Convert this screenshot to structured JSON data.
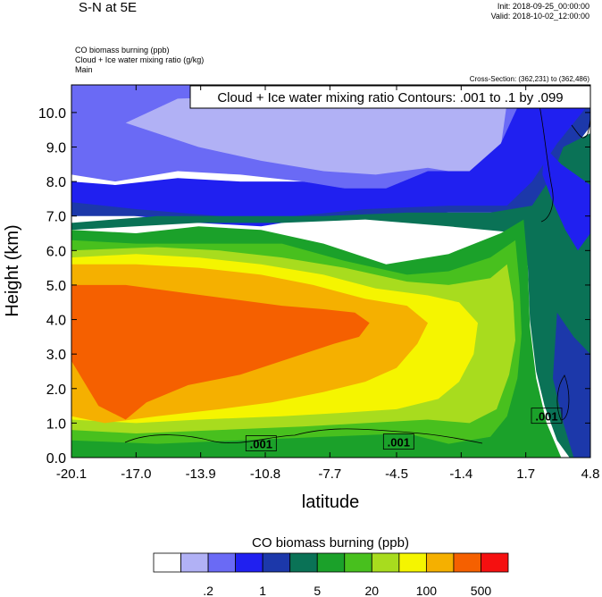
{
  "header": {
    "title": "S-N at 5E",
    "init": "Init: 2018-09-25_00:00:00",
    "valid": "Valid: 2018-10-02_12:00:00",
    "field1": "CO biomass burning   (ppb)",
    "field2": "Cloud + Ice water mixing ratio   (g/kg)",
    "field3": "Main",
    "cross_section": "Cross-Section: (362,231) to (362,486)"
  },
  "chart_data": {
    "type": "heatmap",
    "title": "S-N at 5E",
    "xlabel": "latitude",
    "ylabel": "Height (km)",
    "xlim": [
      -20.1,
      4.8
    ],
    "ylim": [
      0.0,
      10.8
    ],
    "x_ticks": [
      -20.1,
      -17.0,
      -13.9,
      -10.8,
      -7.7,
      -4.5,
      -1.4,
      1.7,
      4.8
    ],
    "x_tick_labels": [
      "-20.1",
      "-17.0",
      "-13.9",
      "-10.8",
      "-7.7",
      "-4.5",
      "-1.4",
      "1.7",
      "4.8"
    ],
    "y_ticks": [
      0.0,
      1.0,
      2.0,
      3.0,
      4.0,
      5.0,
      6.0,
      7.0,
      8.0,
      9.0,
      10.0
    ],
    "y_tick_labels": [
      "0.0",
      "1.0",
      "2.0",
      "3.0",
      "4.0",
      "5.0",
      "6.0",
      "7.0",
      "8.0",
      "9.0",
      "10.0"
    ],
    "contour_title": "Cloud + Ice water mixing ratio Contours: .001 to .1 by .099",
    "contour_labels": [
      {
        "text": ".001",
        "lat": -11.0,
        "z": 0.4
      },
      {
        "text": ".001",
        "lat": -4.4,
        "z": 0.45
      },
      {
        "text": ".001",
        "lat": 2.7,
        "z": 1.2
      }
    ],
    "colorbar": {
      "title": "CO biomass burning  (ppb)",
      "colors": [
        "#ffffff",
        "#b1b1f5",
        "#6a6af5",
        "#2020f0",
        "#1c38aa",
        "#0a7256",
        "#1ba12a",
        "#48c01e",
        "#a8dc1e",
        "#f5f500",
        "#f5b000",
        "#f56000",
        "#f51010"
      ],
      "tick_labels": [
        ".2",
        "1",
        "5",
        "20",
        "100",
        "500"
      ]
    },
    "regions": [
      {
        "level": 2,
        "lat_z": [
          [
            -20.1,
            9.2
          ],
          [
            -17.5,
            9.6
          ],
          [
            -14,
            10.3
          ],
          [
            -10,
            10.2
          ],
          [
            -7,
            10.0
          ],
          [
            -4,
            9.7
          ],
          [
            -1,
            10.0
          ],
          [
            0.5,
            10.5
          ],
          [
            0.5,
            10.8
          ],
          [
            -20.1,
            10.8
          ]
        ]
      },
      {
        "level": 2,
        "lat_z": [
          [
            -20.1,
            8.2
          ],
          [
            -18,
            8.0
          ],
          [
            -15,
            8.3
          ],
          [
            -12,
            8.2
          ],
          [
            -9,
            8.0
          ],
          [
            -6.5,
            7.7
          ],
          [
            -4,
            7.6
          ],
          [
            -2,
            7.9
          ],
          [
            0,
            8.4
          ],
          [
            1.5,
            9.0
          ],
          [
            2.5,
            10.0
          ],
          [
            4.8,
            10.8
          ],
          [
            4.8,
            10.8
          ],
          [
            -20.1,
            10.8
          ]
        ]
      },
      {
        "level": 1,
        "lat_z": [
          [
            -17.5,
            9.7
          ],
          [
            -14,
            9.0
          ],
          [
            -11,
            8.6
          ],
          [
            -8,
            8.3
          ],
          [
            -5.5,
            8.2
          ],
          [
            -3,
            8.4
          ],
          [
            -1,
            8.2
          ],
          [
            0.5,
            9.0
          ],
          [
            0.8,
            10.3
          ],
          [
            -3,
            10.5
          ],
          [
            -10,
            10.5
          ],
          [
            -15,
            10.4
          ]
        ]
      },
      {
        "level": 3,
        "lat_z": [
          [
            -20.1,
            7.2
          ],
          [
            -17,
            7.0
          ],
          [
            -14,
            6.8
          ],
          [
            -11,
            6.7
          ],
          [
            -8,
            7.0
          ],
          [
            -5,
            7.1
          ],
          [
            -2,
            7.2
          ],
          [
            0.8,
            7.2
          ],
          [
            2,
            7.8
          ],
          [
            3.2,
            8.8
          ],
          [
            4.8,
            10.2
          ],
          [
            4.8,
            10.8
          ],
          [
            1.8,
            10.8
          ],
          [
            0.5,
            9.1
          ],
          [
            -1,
            8.3
          ],
          [
            -3,
            8.3
          ],
          [
            -5,
            7.8
          ],
          [
            -7,
            7.8
          ],
          [
            -9,
            8.0
          ],
          [
            -12,
            8.0
          ],
          [
            -15,
            8.1
          ],
          [
            -18,
            7.9
          ],
          [
            -20.1,
            8.0
          ]
        ]
      },
      {
        "level": 4,
        "lat_z": [
          [
            -20.1,
            7.0
          ],
          [
            -15,
            7.0
          ],
          [
            -10,
            6.9
          ],
          [
            -6,
            7.0
          ],
          [
            -2,
            7.1
          ],
          [
            1.5,
            7.1
          ],
          [
            2.8,
            7.6
          ],
          [
            3.8,
            8.8
          ],
          [
            4.8,
            9.6
          ],
          [
            4.8,
            10.3
          ],
          [
            3.2,
            9.1
          ],
          [
            2,
            8.0
          ],
          [
            0.8,
            7.3
          ],
          [
            -2,
            7.3
          ],
          [
            -6,
            7.2
          ],
          [
            -11,
            6.9
          ],
          [
            -17,
            7.2
          ],
          [
            -20.1,
            7.4
          ]
        ]
      },
      {
        "level": 5,
        "lat_z": [
          [
            -20.1,
            6.8
          ],
          [
            -16,
            7.0
          ],
          [
            -12,
            7.0
          ],
          [
            -8,
            7.0
          ],
          [
            -4,
            7.1
          ],
          [
            0,
            7.1
          ],
          [
            2.0,
            7.3
          ],
          [
            3.0,
            8.2
          ],
          [
            3.5,
            9.0
          ],
          [
            4.8,
            9.4
          ],
          [
            4.8,
            0
          ],
          [
            3.8,
            0
          ],
          [
            3.2,
            0.5
          ],
          [
            2.6,
            1.5
          ],
          [
            2.2,
            2.5
          ],
          [
            1.9,
            4
          ],
          [
            1.8,
            5.5
          ],
          [
            1.5,
            6.5
          ],
          [
            -2,
            6.7
          ],
          [
            -6,
            6.9
          ],
          [
            -10,
            6.8
          ],
          [
            -14,
            6.8
          ],
          [
            -20.1,
            6.6
          ]
        ]
      },
      {
        "level": 3,
        "lat_z": [
          [
            2.6,
            9.0
          ],
          [
            3.4,
            8.5
          ],
          [
            4.8,
            7.9
          ],
          [
            4.8,
            6.5
          ],
          [
            4.2,
            6.0
          ],
          [
            3.6,
            6.6
          ],
          [
            3.0,
            7.4
          ],
          [
            2.5,
            8.2
          ]
        ]
      },
      {
        "level": 4,
        "lat_z": [
          [
            3.2,
            4.2
          ],
          [
            4.0,
            3.5
          ],
          [
            4.8,
            3.0
          ],
          [
            4.8,
            0
          ],
          [
            4.0,
            0
          ],
          [
            3.5,
            1.0
          ],
          [
            3.0,
            2.3
          ]
        ]
      },
      {
        "level": 6,
        "lat_z": [
          [
            -20.1,
            6.6
          ],
          [
            -17,
            6.5
          ],
          [
            -14,
            6.7
          ],
          [
            -11,
            6.6
          ],
          [
            -8,
            6.2
          ],
          [
            -5,
            5.6
          ],
          [
            -2,
            5.9
          ],
          [
            0.5,
            6.5
          ],
          [
            1.6,
            6.9
          ],
          [
            1.8,
            5.5
          ],
          [
            1.9,
            3.8
          ],
          [
            2.2,
            2.3
          ],
          [
            2.7,
            1.0
          ],
          [
            3.4,
            0
          ],
          [
            -20.1,
            0
          ]
        ]
      },
      {
        "level": 7,
        "lat_z": [
          [
            -20.1,
            6.3
          ],
          [
            -17,
            6.2
          ],
          [
            -14,
            6.2
          ],
          [
            -10,
            6.2
          ],
          [
            -7,
            5.7
          ],
          [
            -4,
            5.3
          ],
          [
            -2,
            5.4
          ],
          [
            0,
            5.8
          ],
          [
            1.2,
            6.3
          ],
          [
            1.4,
            5.0
          ],
          [
            1.5,
            3.6
          ],
          [
            1.3,
            2.3
          ],
          [
            0.8,
            1.2
          ],
          [
            0,
            0.6
          ],
          [
            -2,
            0.4
          ],
          [
            -4,
            0.7
          ],
          [
            -8,
            0.6
          ],
          [
            -12,
            0.5
          ],
          [
            -16,
            0.4
          ],
          [
            -20.1,
            0.5
          ]
        ]
      },
      {
        "level": 8,
        "lat_z": [
          [
            -20.1,
            6.0
          ],
          [
            -16,
            6.1
          ],
          [
            -13,
            6.0
          ],
          [
            -10,
            5.8
          ],
          [
            -7,
            5.5
          ],
          [
            -4,
            5.1
          ],
          [
            -2,
            5.0
          ],
          [
            0,
            5.2
          ],
          [
            0.8,
            5.6
          ],
          [
            1.1,
            4.5
          ],
          [
            1.2,
            3.4
          ],
          [
            0.9,
            2.4
          ],
          [
            0.3,
            1.4
          ],
          [
            -1,
            1.0
          ],
          [
            -3,
            1.1
          ],
          [
            -6,
            1.0
          ],
          [
            -9,
            0.9
          ],
          [
            -13,
            0.8
          ],
          [
            -17,
            0.7
          ],
          [
            -20.1,
            0.8
          ]
        ]
      },
      {
        "level": 9,
        "lat_z": [
          [
            -20.1,
            5.8
          ],
          [
            -17,
            5.9
          ],
          [
            -14,
            5.8
          ],
          [
            -11,
            5.6
          ],
          [
            -8,
            5.3
          ],
          [
            -5.5,
            4.9
          ],
          [
            -3,
            4.7
          ],
          [
            -1.5,
            4.5
          ],
          [
            -0.6,
            3.9
          ],
          [
            -0.8,
            3.0
          ],
          [
            -1.5,
            2.2
          ],
          [
            -2.5,
            1.7
          ],
          [
            -4.5,
            1.4
          ],
          [
            -7,
            1.3
          ],
          [
            -10,
            1.2
          ],
          [
            -14,
            1.1
          ],
          [
            -17,
            1.0
          ],
          [
            -20.1,
            1.1
          ]
        ]
      },
      {
        "level": 10,
        "lat_z": [
          [
            -20.1,
            5.6
          ],
          [
            -17,
            5.6
          ],
          [
            -14,
            5.5
          ],
          [
            -11,
            5.3
          ],
          [
            -8.5,
            5.0
          ],
          [
            -6,
            4.6
          ],
          [
            -4,
            4.4
          ],
          [
            -3,
            3.9
          ],
          [
            -3.5,
            3.3
          ],
          [
            -4.5,
            2.6
          ],
          [
            -6,
            2.2
          ],
          [
            -8,
            1.9
          ],
          [
            -10.5,
            1.6
          ],
          [
            -13,
            1.4
          ],
          [
            -16,
            1.2
          ],
          [
            -18.5,
            1.0
          ],
          [
            -20.1,
            1.2
          ]
        ]
      },
      {
        "level": 11,
        "lat_z": [
          [
            -20.1,
            5.0
          ],
          [
            -17.5,
            5.0
          ],
          [
            -15,
            4.8
          ],
          [
            -12.5,
            4.6
          ],
          [
            -10,
            4.4
          ],
          [
            -8,
            4.3
          ],
          [
            -6.5,
            4.2
          ],
          [
            -5.8,
            3.9
          ],
          [
            -6.3,
            3.5
          ],
          [
            -7.5,
            3.3
          ],
          [
            -9.5,
            2.9
          ],
          [
            -12,
            2.4
          ],
          [
            -14.5,
            2.1
          ],
          [
            -16.5,
            1.6
          ],
          [
            -17.5,
            1.1
          ],
          [
            -18.8,
            1.5
          ],
          [
            -19.5,
            2.2
          ],
          [
            -20.1,
            2.8
          ]
        ]
      }
    ]
  }
}
